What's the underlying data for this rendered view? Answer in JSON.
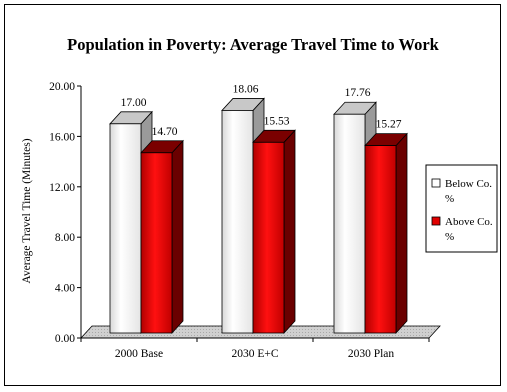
{
  "chart_data": {
    "type": "bar",
    "title": "Population in Poverty: Average Travel Time to Work",
    "xlabel": "",
    "ylabel": "Average Travel Time (Minutes)",
    "categories": [
      "2000 Base",
      "2030 E+C",
      "2030 Plan"
    ],
    "ylim": [
      0,
      20
    ],
    "yticks": [
      "0.00",
      "4.00",
      "8.00",
      "12.00",
      "16.00",
      "20.00"
    ],
    "grid": false,
    "legend_position": "right",
    "series": [
      {
        "name": "Below Co. %",
        "legend_lines": [
          "Below Co.",
          "%"
        ],
        "values": [
          17.0,
          18.06,
          17.76
        ],
        "labels": [
          "17.00",
          "18.06",
          "17.76"
        ],
        "color": "#ffffff"
      },
      {
        "name": "Above Co. %",
        "legend_lines": [
          "Above Co.",
          "%"
        ],
        "values": [
          14.7,
          15.53,
          15.27
        ],
        "labels": [
          "14.70",
          "15.53",
          "15.27"
        ],
        "color": "#e00000"
      }
    ]
  }
}
